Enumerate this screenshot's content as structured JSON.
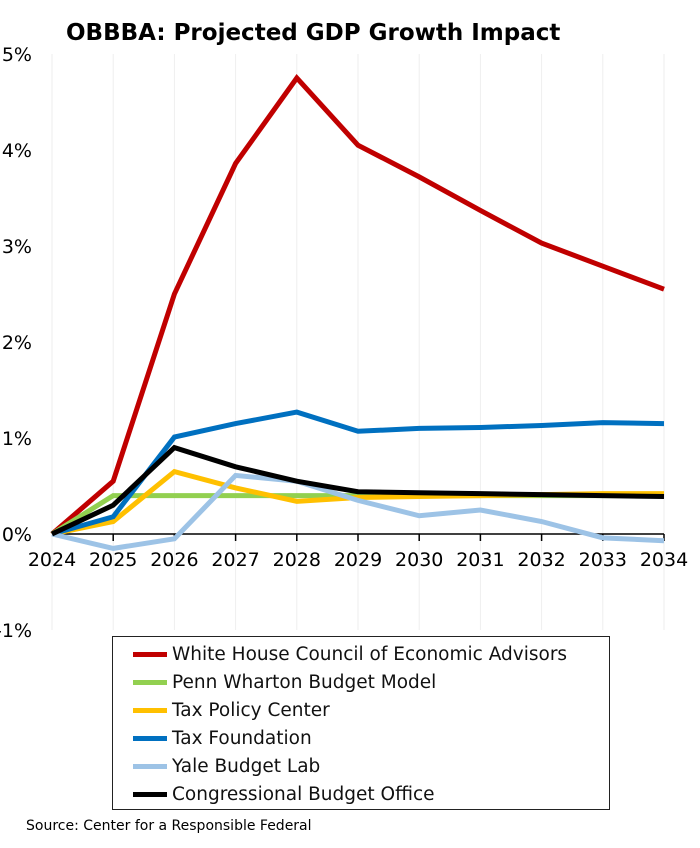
{
  "chart_data": {
    "type": "line",
    "title": "OBBBA: Projected GDP Growth Impact",
    "x": [
      2024,
      2025,
      2026,
      2027,
      2028,
      2029,
      2030,
      2031,
      2032,
      2033,
      2034
    ],
    "xtick_labels": [
      "2024",
      "2025",
      "2026",
      "2027",
      "2028",
      "2029",
      "2030",
      "2031",
      "2032",
      "2033",
      "2034"
    ],
    "ytick_labels": [
      "5%",
      "4%",
      "3%",
      "2%",
      "1%",
      "0%",
      "-1%"
    ],
    "yticks": [
      5,
      4,
      3,
      2,
      1,
      0,
      -1
    ],
    "ylim": [
      -1,
      5
    ],
    "grid": "vertical lines",
    "legend_placement": "bottom",
    "series": [
      {
        "name": "White House Council of Economic Advisors",
        "color": "#c00000",
        "values": [
          0,
          0.55,
          2.5,
          3.86,
          4.75,
          4.05,
          3.72,
          3.37,
          3.03,
          2.79,
          2.55
        ]
      },
      {
        "name": "Penn Wharton Budget Model",
        "color": "#92d050",
        "values": [
          0,
          0.4,
          0.4,
          0.4,
          0.4,
          0.4,
          0.4,
          0.4,
          0.4,
          0.4,
          0.4
        ]
      },
      {
        "name": "Tax Policy Center",
        "color": "#ffc000",
        "values": [
          0,
          0.13,
          0.65,
          0.48,
          0.34,
          0.38,
          0.39,
          0.4,
          0.41,
          0.42,
          0.42
        ]
      },
      {
        "name": "Tax Foundation",
        "color": "#0070c0",
        "values": [
          0,
          0.18,
          1.01,
          1.15,
          1.27,
          1.07,
          1.1,
          1.11,
          1.13,
          1.16,
          1.15
        ]
      },
      {
        "name": "Yale Budget Lab",
        "color": "#9dc3e6",
        "values": [
          0,
          -0.15,
          -0.05,
          0.61,
          0.55,
          0.35,
          0.19,
          0.25,
          0.13,
          -0.04,
          -0.07
        ]
      },
      {
        "name": "Congressional Budget Office",
        "color": "#000000",
        "values": [
          0,
          0.3,
          0.9,
          0.7,
          0.55,
          0.44,
          0.43,
          0.42,
          0.41,
          0.4,
          0.39
        ]
      }
    ]
  },
  "source": "Source: Center for a Responsible Federal"
}
